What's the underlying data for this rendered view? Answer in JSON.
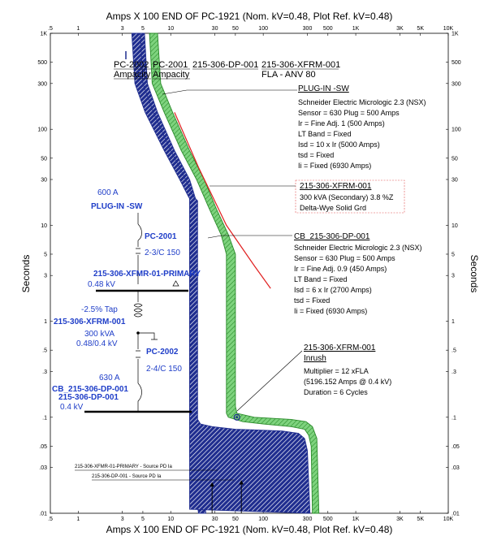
{
  "chart_data": {
    "type": "line",
    "title": "Amps  X  100   END OF PC-1921 (Nom. kV=0.48, Plot Ref. kV=0.48)",
    "xlabel": "Amps  X  100   END OF PC-1921 (Nom. kV=0.48, Plot Ref. kV=0.48)",
    "ylabel": "Seconds",
    "x_scale": "log",
    "y_scale": "log",
    "xlim": [
      0.5,
      10000
    ],
    "ylim": [
      0.01,
      1000
    ],
    "x_ticks": [
      ".5",
      "1",
      "3",
      "5",
      "10",
      "30",
      "50",
      "100",
      "300",
      "500",
      "1K",
      "3K",
      "5K",
      "10K"
    ],
    "x_tick_values": [
      0.5,
      1,
      3,
      5,
      10,
      30,
      50,
      100,
      300,
      500,
      1000,
      3000,
      5000,
      10000
    ],
    "y_ticks": [
      "1K",
      "500",
      "300",
      "100",
      "50",
      "30",
      "10",
      "5",
      "3",
      "1",
      ".5",
      ".3",
      ".1",
      ".05",
      ".03",
      ".01"
    ],
    "y_tick_values": [
      1000,
      500,
      300,
      100,
      50,
      30,
      10,
      5,
      3,
      1,
      0.5,
      0.3,
      0.1,
      0.05,
      0.03,
      0.01
    ],
    "series": [
      {
        "name": "PC-2002",
        "color": "#1f2d8f",
        "hatch": "#ffffff",
        "left": [
          [
            4.0,
            1000
          ],
          [
            4.3,
            300
          ],
          [
            5.5,
            150
          ],
          [
            9,
            60
          ],
          [
            13,
            30
          ],
          [
            16,
            19
          ],
          [
            16,
            0.04
          ],
          [
            16.5,
            0.03
          ],
          [
            18,
            0.02
          ],
          [
            20,
            0.01
          ]
        ],
        "right": [
          [
            5.2,
            1000
          ],
          [
            5.6,
            300
          ],
          [
            7.2,
            150
          ],
          [
            11,
            60
          ],
          [
            16,
            30
          ],
          [
            18.5,
            19
          ],
          [
            18.5,
            0.05
          ],
          [
            19,
            0.04
          ],
          [
            20,
            0.032
          ],
          [
            22,
            0.02
          ],
          [
            24,
            0.01
          ]
        ]
      },
      {
        "name": "PC-2001",
        "color": "#1f2d8f",
        "hatch": "#ffffff",
        "left": [
          [
            3.8,
            1000
          ],
          [
            4.1,
            300
          ],
          [
            5.3,
            150
          ],
          [
            8.5,
            60
          ],
          [
            12.5,
            30
          ],
          [
            15.5,
            20
          ],
          [
            16,
            19
          ],
          [
            16,
            0.011
          ]
        ],
        "right": [
          [
            4.7,
            1000
          ],
          [
            5.0,
            300
          ],
          [
            6.5,
            150
          ],
          [
            10,
            60
          ],
          [
            14.5,
            30
          ],
          [
            17.5,
            20
          ],
          [
            19.5,
            18
          ],
          [
            19.5,
            0.095
          ],
          [
            21,
            0.085
          ],
          [
            28,
            0.08
          ],
          [
            50,
            0.075
          ],
          [
            80,
            0.074
          ],
          [
            160,
            0.072
          ],
          [
            240,
            0.068
          ],
          [
            280,
            0.06
          ],
          [
            300,
            0.045
          ],
          [
            320,
            0.01
          ]
        ]
      },
      {
        "name": "215-306-DP-001",
        "color": "#2a8a2a",
        "hatch": "#7ed37e",
        "left": [
          [
            5.9,
            1000
          ],
          [
            6.3,
            300
          ],
          [
            8.5,
            150
          ],
          [
            13,
            60
          ],
          [
            19,
            30
          ],
          [
            26,
            15
          ],
          [
            35,
            8
          ],
          [
            40,
            5
          ],
          [
            40,
            0.11
          ],
          [
            42,
            0.1
          ],
          [
            60,
            0.09
          ],
          [
            100,
            0.085
          ],
          [
            200,
            0.08
          ],
          [
            280,
            0.075
          ],
          [
            310,
            0.065
          ],
          [
            330,
            0.05
          ],
          [
            340,
            0.01
          ]
        ],
        "right": [
          [
            7.2,
            1000
          ],
          [
            7.8,
            300
          ],
          [
            10.5,
            150
          ],
          [
            16,
            60
          ],
          [
            23,
            30
          ],
          [
            31,
            15
          ],
          [
            42,
            8
          ],
          [
            50,
            5
          ],
          [
            50,
            0.13
          ],
          [
            52,
            0.11
          ],
          [
            80,
            0.1
          ],
          [
            200,
            0.095
          ],
          [
            290,
            0.09
          ],
          [
            340,
            0.08
          ],
          [
            380,
            0.06
          ],
          [
            400,
            0.01
          ]
        ]
      }
    ],
    "xfmr_damage_curve": {
      "name": "215-306-XFRM-001",
      "color": "#e02020",
      "points": [
        [
          11,
          150
        ],
        [
          20,
          40
        ],
        [
          40,
          10
        ],
        [
          80,
          3.8
        ],
        [
          120,
          2.2
        ]
      ]
    },
    "inrush_point": {
      "name": "215-306-XFRM-001 Inrush",
      "x": 51.96,
      "y": 0.1
    },
    "source_arrows": [
      {
        "x": 28,
        "y_from": 0.005,
        "y_to": 0.02
      },
      {
        "x": 58,
        "y_from": 0.005,
        "y_to": 0.021
      }
    ],
    "device_labels": [
      {
        "id": "pc2002",
        "text": "PC-2002",
        "sub": "Ampacity"
      },
      {
        "id": "pc2001",
        "text": "PC-2001",
        "sub": "Ampacity"
      },
      {
        "id": "dp001",
        "text": "215-306-DP-001",
        "sub": ""
      },
      {
        "id": "xfrm001",
        "text": "215-306-XFRM-001",
        "sub": "FLA - ANV 80"
      }
    ],
    "annotations": {
      "plugin": {
        "title": "PLUG-IN -SW",
        "lines": [
          "Schneider Electric  Micrologic 2.3 (NSX)",
          "Sensor = 630 Plug = 500 Amps",
          "Ir = Fine Adj. 1 (500 Amps)",
          "LT Band = Fixed",
          "Isd = 10 x Ir (5000 Amps)",
          "tsd = Fixed",
          "Ii = Fixed (6930 Amps)"
        ]
      },
      "xfrm": {
        "title": "215-306-XFRM-001",
        "lines": [
          "300 kVA (Secondary)  3.8 %Z",
          "Delta-Wye Solid Grd"
        ]
      },
      "cb": {
        "title": "CB_215-306-DP-001",
        "lines": [
          "Schneider Electric  Micrologic 2.3 (NSX)",
          "Sensor = 630 Plug = 500 Amps",
          "Ir = Fine Adj. 0.9 (450 Amps)",
          "LT Band = Fixed",
          "Isd = 6 x Ir (2700 Amps)",
          "tsd = Fixed",
          "Ii = Fixed (6930 Amps)"
        ]
      },
      "inrush": {
        "title": "215-306-XFRM-001",
        "sub": "Inrush",
        "lines": [
          "Multiplier = 12 xFLA",
          "(5196.152 Amps @ 0.4 kV)",
          "Duration = 6 Cycles"
        ]
      }
    },
    "one_line": {
      "plugin_amps": "600 A",
      "plugin_name": "PLUG-IN -SW",
      "pc2001_name": "PC-2001",
      "pc2001_size": "2-3/C 150",
      "primary_bus": "215-306-XFMR-01-PRIMARY",
      "primary_kv": "0.48 kV",
      "tap": "-2.5% Tap",
      "xfrm_name": "215-306-XFRM-001",
      "xfrm_kva": "300 kVA",
      "xfrm_kv": "0.48/0.4 kV",
      "pc2002_name": "PC-2002",
      "pc2002_size": "2-4/C 150",
      "cb_amps": "630 A",
      "cb_name": "CB_215-306-DP-001",
      "dp_name": "215-306-DP-001",
      "dp_kv": "0.4 kV"
    },
    "source_notes": [
      "215-306-XFMR-01-PRIMARY - Source PD Ia",
      "215-306-DP-001 - Source PD Ia"
    ]
  }
}
